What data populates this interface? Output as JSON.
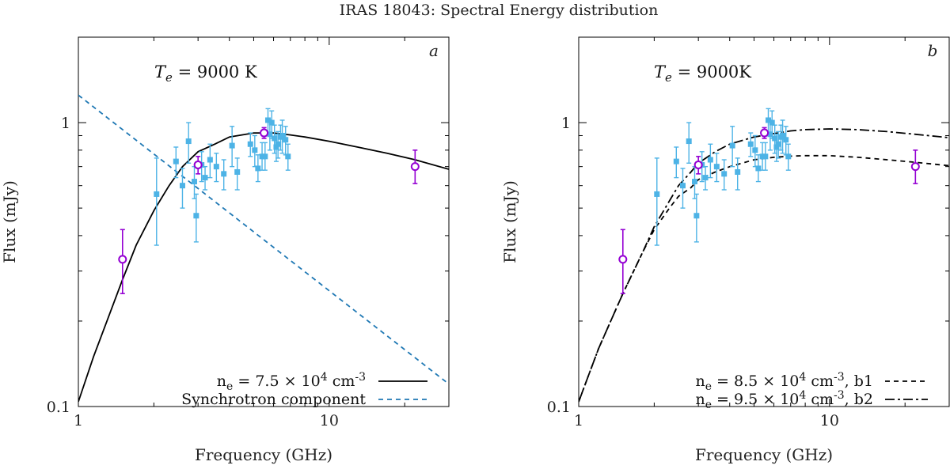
{
  "title": "IRAS 18043: Spectral Energy distribution",
  "colors": {
    "data_squares": "#4db3e6",
    "data_circles": "#9400d3",
    "model_line": "#000000",
    "synchrotron_line": "#1f78b4",
    "axes": "#000000"
  },
  "chart_data": [
    {
      "type": "line",
      "panel": "a",
      "panel_letter": "a",
      "te_label": "Te = 9000 K",
      "xlabel": "Frequency (GHz)",
      "ylabel": "Flux (mJy)",
      "xscale": "log",
      "yscale": "log",
      "xlim": [
        1,
        30
      ],
      "ylim": [
        0.1,
        2
      ],
      "x_tick_labels": [
        {
          "value": 1,
          "label": "1"
        },
        {
          "value": 10,
          "label": "10"
        }
      ],
      "y_tick_labels": [
        {
          "value": 0.1,
          "label": "0.1"
        },
        {
          "value": 1,
          "label": "1"
        }
      ],
      "legend_position": "bottom-right",
      "series": [
        {
          "name": "ne = 7.5 × 10^4 cm^-3",
          "legend_label": "n_e = 7.5 × 10^4 cm^-3",
          "style": "solid",
          "color": "#000000",
          "x": [
            1.0,
            1.15,
            1.3,
            1.5,
            1.7,
            2.0,
            2.3,
            2.6,
            3.0,
            3.5,
            4.0,
            5.0,
            6.0,
            7.0,
            8.0,
            10.0,
            13.0,
            17.0,
            22.0,
            30.0
          ],
          "y": [
            0.104,
            0.15,
            0.2,
            0.28,
            0.37,
            0.49,
            0.6,
            0.7,
            0.79,
            0.84,
            0.89,
            0.92,
            0.92,
            0.905,
            0.89,
            0.86,
            0.82,
            0.78,
            0.74,
            0.685
          ]
        },
        {
          "name": "Synchrotron component",
          "legend_label": "Synchrotron component",
          "style": "dashed",
          "color": "#1f78b4",
          "x": [
            1.0,
            30.0
          ],
          "y": [
            1.25,
            0.12
          ]
        }
      ],
      "data_squares": [
        {
          "x": 2.05,
          "y": 0.56,
          "lo": 0.37,
          "hi": 0.75
        },
        {
          "x": 2.45,
          "y": 0.73,
          "lo": 0.64,
          "hi": 0.82
        },
        {
          "x": 2.6,
          "y": 0.6,
          "lo": 0.5,
          "hi": 0.69
        },
        {
          "x": 2.75,
          "y": 0.86,
          "lo": 0.72,
          "hi": 1.0
        },
        {
          "x": 2.9,
          "y": 0.62,
          "lo": 0.54,
          "hi": 0.7
        },
        {
          "x": 2.95,
          "y": 0.47,
          "lo": 0.38,
          "hi": 0.56
        },
        {
          "x": 3.1,
          "y": 0.71,
          "lo": 0.62,
          "hi": 0.79
        },
        {
          "x": 3.2,
          "y": 0.64,
          "lo": 0.58,
          "hi": 0.7
        },
        {
          "x": 3.35,
          "y": 0.74,
          "lo": 0.64,
          "hi": 0.84
        },
        {
          "x": 3.55,
          "y": 0.7,
          "lo": 0.62,
          "hi": 0.78
        },
        {
          "x": 3.8,
          "y": 0.66,
          "lo": 0.58,
          "hi": 0.74
        },
        {
          "x": 4.1,
          "y": 0.83,
          "lo": 0.7,
          "hi": 0.97
        },
        {
          "x": 4.3,
          "y": 0.67,
          "lo": 0.58,
          "hi": 0.75
        },
        {
          "x": 4.85,
          "y": 0.84,
          "lo": 0.76,
          "hi": 0.92
        },
        {
          "x": 5.05,
          "y": 0.8,
          "lo": 0.7,
          "hi": 0.9
        },
        {
          "x": 5.2,
          "y": 0.69,
          "lo": 0.62,
          "hi": 0.77
        },
        {
          "x": 5.4,
          "y": 0.76,
          "lo": 0.68,
          "hi": 0.85
        },
        {
          "x": 5.55,
          "y": 0.76,
          "lo": 0.68,
          "hi": 0.85
        },
        {
          "x": 5.7,
          "y": 1.02,
          "lo": 0.92,
          "hi": 1.12
        },
        {
          "x": 5.8,
          "y": 0.91,
          "lo": 0.8,
          "hi": 1.02
        },
        {
          "x": 5.9,
          "y": 1.0,
          "lo": 0.88,
          "hi": 1.1
        },
        {
          "x": 6.05,
          "y": 0.88,
          "lo": 0.78,
          "hi": 0.98
        },
        {
          "x": 6.15,
          "y": 0.82,
          "lo": 0.73,
          "hi": 0.91
        },
        {
          "x": 6.25,
          "y": 0.84,
          "lo": 0.75,
          "hi": 0.93
        },
        {
          "x": 6.4,
          "y": 0.89,
          "lo": 0.8,
          "hi": 0.98
        },
        {
          "x": 6.5,
          "y": 0.9,
          "lo": 0.78,
          "hi": 1.02
        },
        {
          "x": 6.7,
          "y": 0.87,
          "lo": 0.77,
          "hi": 0.97
        },
        {
          "x": 6.85,
          "y": 0.76,
          "lo": 0.68,
          "hi": 0.84
        }
      ],
      "data_circles": [
        {
          "x": 1.5,
          "y": 0.33,
          "lo": 0.25,
          "hi": 0.42
        },
        {
          "x": 3.0,
          "y": 0.71,
          "lo": 0.66,
          "hi": 0.76
        },
        {
          "x": 5.5,
          "y": 0.92,
          "lo": 0.88,
          "hi": 0.96
        },
        {
          "x": 22.0,
          "y": 0.7,
          "lo": 0.61,
          "hi": 0.8
        }
      ]
    },
    {
      "type": "line",
      "panel": "b",
      "panel_letter": "b",
      "te_label": "Te = 9000K",
      "xlabel": "Frequency (GHz)",
      "ylabel": "Flux (mJy)",
      "xscale": "log",
      "yscale": "log",
      "xlim": [
        1,
        30
      ],
      "ylim": [
        0.1,
        2
      ],
      "x_tick_labels": [
        {
          "value": 1,
          "label": "1"
        },
        {
          "value": 10,
          "label": "10"
        }
      ],
      "y_tick_labels": [
        {
          "value": 0.1,
          "label": "0.1"
        },
        {
          "value": 1,
          "label": "1"
        }
      ],
      "legend_position": "bottom-right",
      "series": [
        {
          "name": "ne = 8.5 × 10^4 cm^-3, b1",
          "legend_label": "n_e = 8.5 × 10^4 cm^-3, b1",
          "style": "dashed",
          "color": "#000000",
          "x": [
            1.0,
            1.2,
            1.5,
            1.8,
            2.0,
            2.3,
            2.5,
            2.8,
            3.0,
            3.5,
            4.0,
            5.0,
            6.0,
            7.0,
            8.0,
            10.0,
            13.0,
            17.0,
            22.0,
            30.0
          ],
          "y": [
            0.104,
            0.16,
            0.25,
            0.35,
            0.42,
            0.5,
            0.55,
            0.59,
            0.63,
            0.67,
            0.7,
            0.74,
            0.755,
            0.762,
            0.765,
            0.765,
            0.755,
            0.74,
            0.725,
            0.705
          ]
        },
        {
          "name": "ne = 9.5 × 10^4 cm^-3, b2",
          "legend_label": "n_e = 9.5 × 10^4 cm^-3, b2",
          "style": "dashdot",
          "color": "#000000",
          "x": [
            1.0,
            1.2,
            1.5,
            1.8,
            2.0,
            2.3,
            2.5,
            2.8,
            3.0,
            3.5,
            4.0,
            5.0,
            6.0,
            7.0,
            8.0,
            10.0,
            13.0,
            17.0,
            22.0,
            30.0
          ],
          "y": [
            0.104,
            0.16,
            0.25,
            0.35,
            0.43,
            0.53,
            0.6,
            0.67,
            0.72,
            0.79,
            0.84,
            0.89,
            0.915,
            0.935,
            0.945,
            0.95,
            0.945,
            0.93,
            0.91,
            0.885
          ]
        }
      ],
      "data_squares": [
        {
          "x": 2.05,
          "y": 0.56,
          "lo": 0.37,
          "hi": 0.75
        },
        {
          "x": 2.45,
          "y": 0.73,
          "lo": 0.64,
          "hi": 0.82
        },
        {
          "x": 2.6,
          "y": 0.6,
          "lo": 0.5,
          "hi": 0.69
        },
        {
          "x": 2.75,
          "y": 0.86,
          "lo": 0.72,
          "hi": 1.0
        },
        {
          "x": 2.9,
          "y": 0.62,
          "lo": 0.54,
          "hi": 0.7
        },
        {
          "x": 2.95,
          "y": 0.47,
          "lo": 0.38,
          "hi": 0.56
        },
        {
          "x": 3.1,
          "y": 0.71,
          "lo": 0.62,
          "hi": 0.79
        },
        {
          "x": 3.2,
          "y": 0.64,
          "lo": 0.58,
          "hi": 0.7
        },
        {
          "x": 3.35,
          "y": 0.74,
          "lo": 0.64,
          "hi": 0.84
        },
        {
          "x": 3.55,
          "y": 0.7,
          "lo": 0.62,
          "hi": 0.78
        },
        {
          "x": 3.8,
          "y": 0.66,
          "lo": 0.58,
          "hi": 0.74
        },
        {
          "x": 4.1,
          "y": 0.83,
          "lo": 0.7,
          "hi": 0.97
        },
        {
          "x": 4.3,
          "y": 0.67,
          "lo": 0.58,
          "hi": 0.75
        },
        {
          "x": 4.85,
          "y": 0.84,
          "lo": 0.76,
          "hi": 0.92
        },
        {
          "x": 5.05,
          "y": 0.8,
          "lo": 0.7,
          "hi": 0.9
        },
        {
          "x": 5.2,
          "y": 0.69,
          "lo": 0.62,
          "hi": 0.77
        },
        {
          "x": 5.4,
          "y": 0.76,
          "lo": 0.68,
          "hi": 0.85
        },
        {
          "x": 5.55,
          "y": 0.76,
          "lo": 0.68,
          "hi": 0.85
        },
        {
          "x": 5.7,
          "y": 1.02,
          "lo": 0.92,
          "hi": 1.12
        },
        {
          "x": 5.8,
          "y": 0.91,
          "lo": 0.8,
          "hi": 1.02
        },
        {
          "x": 5.9,
          "y": 1.0,
          "lo": 0.88,
          "hi": 1.1
        },
        {
          "x": 6.05,
          "y": 0.88,
          "lo": 0.78,
          "hi": 0.98
        },
        {
          "x": 6.15,
          "y": 0.82,
          "lo": 0.73,
          "hi": 0.91
        },
        {
          "x": 6.25,
          "y": 0.84,
          "lo": 0.75,
          "hi": 0.93
        },
        {
          "x": 6.4,
          "y": 0.89,
          "lo": 0.8,
          "hi": 0.98
        },
        {
          "x": 6.5,
          "y": 0.9,
          "lo": 0.78,
          "hi": 1.02
        },
        {
          "x": 6.7,
          "y": 0.87,
          "lo": 0.77,
          "hi": 0.97
        },
        {
          "x": 6.85,
          "y": 0.76,
          "lo": 0.68,
          "hi": 0.84
        }
      ],
      "data_circles": [
        {
          "x": 1.5,
          "y": 0.33,
          "lo": 0.25,
          "hi": 0.42
        },
        {
          "x": 3.0,
          "y": 0.71,
          "lo": 0.66,
          "hi": 0.76
        },
        {
          "x": 5.5,
          "y": 0.92,
          "lo": 0.88,
          "hi": 0.96
        },
        {
          "x": 22.0,
          "y": 0.7,
          "lo": 0.61,
          "hi": 0.8
        }
      ]
    }
  ]
}
